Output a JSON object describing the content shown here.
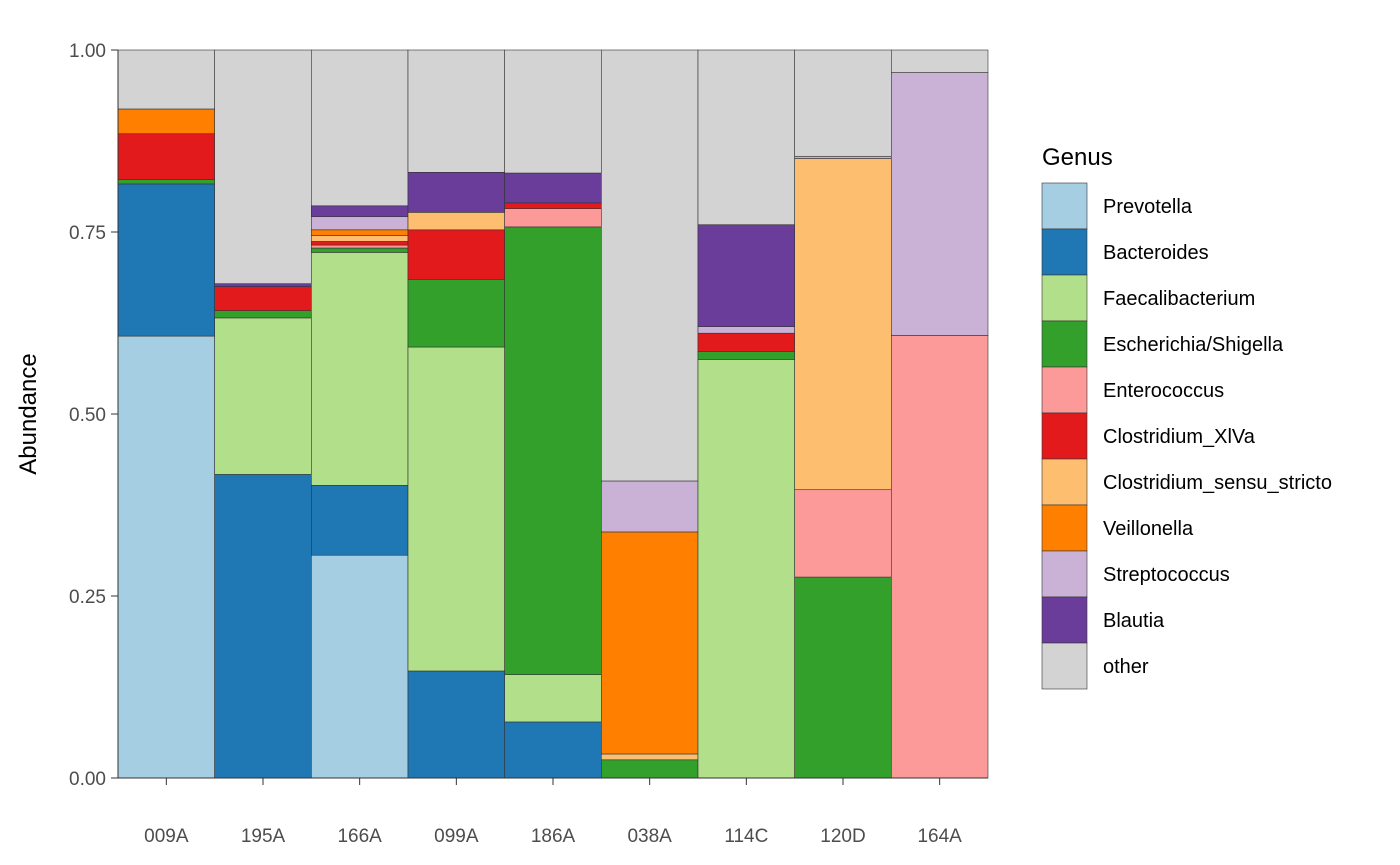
{
  "chart_data": {
    "type": "bar",
    "stacked": true,
    "ylabel": "Abundance",
    "xlabel": "",
    "ylim": [
      0,
      1
    ],
    "y_ticks": [
      "0.00",
      "0.25",
      "0.50",
      "0.75",
      "1.00"
    ],
    "categories": [
      "009A",
      "195A",
      "166A",
      "099A",
      "186A",
      "038A",
      "114C",
      "120D",
      "164A"
    ],
    "legend_title": "Genus",
    "legend_position": "right",
    "grid": false,
    "series": [
      {
        "name": "Prevotella",
        "color": "#A6CEE3",
        "values": [
          0.607,
          0,
          0.306,
          0,
          0,
          0,
          0,
          0,
          0
        ]
      },
      {
        "name": "Bacteroides",
        "color": "#1F78B4",
        "values": [
          0.209,
          0.417,
          0.096,
          0.147,
          0.077,
          0,
          0,
          0,
          0
        ]
      },
      {
        "name": "Faecalibacterium",
        "color": "#B2DF8A",
        "values": [
          0,
          0.215,
          0.32,
          0.445,
          0.065,
          0,
          0.575,
          0,
          0
        ]
      },
      {
        "name": "Escherichia/Shigella",
        "color": "#33A02C",
        "values": [
          0.006,
          0.01,
          0.006,
          0.093,
          0.615,
          0.025,
          0.011,
          0.276,
          0
        ]
      },
      {
        "name": "Enterococcus",
        "color": "#FB9A99",
        "values": [
          0,
          0,
          0.004,
          0,
          0.025,
          0,
          0,
          0.12,
          0.608
        ]
      },
      {
        "name": "Clostridium_XlVa",
        "color": "#E31A1C",
        "values": [
          0.063,
          0.033,
          0.005,
          0.068,
          0.008,
          0,
          0.025,
          0,
          0
        ]
      },
      {
        "name": "Clostridium_sensu_stricto",
        "color": "#FDBF6F",
        "values": [
          0,
          0,
          0.008,
          0.024,
          0,
          0.008,
          0,
          0.455,
          0
        ]
      },
      {
        "name": "Veillonella",
        "color": "#FF7F00",
        "values": [
          0.034,
          0,
          0.008,
          0,
          0,
          0.305,
          0,
          0,
          0
        ]
      },
      {
        "name": "Streptococcus",
        "color": "#CAB2D6",
        "values": [
          0,
          0,
          0.018,
          0,
          0,
          0.07,
          0.009,
          0.003,
          0.361
        ]
      },
      {
        "name": "Blautia",
        "color": "#6A3D9A",
        "values": [
          0,
          0.004,
          0.015,
          0.055,
          0.041,
          0,
          0.14,
          0,
          0
        ]
      },
      {
        "name": "other",
        "color": "#D3D3D3",
        "values": [
          0.081,
          0.321,
          0.214,
          0.168,
          0.169,
          0.592,
          0.24,
          0.146,
          0.031
        ]
      }
    ]
  }
}
